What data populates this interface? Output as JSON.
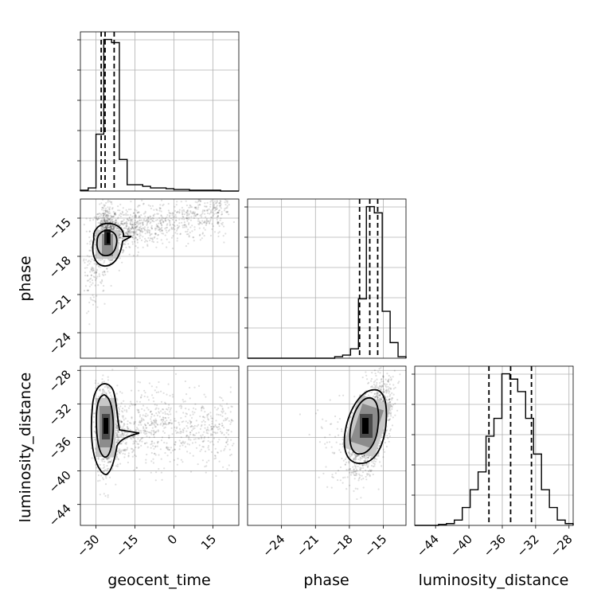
{
  "chart_data": [
    {
      "type": "histogram",
      "panel": "geocent_time",
      "x_range": [
        -36,
        25
      ],
      "bin_edges": [
        -36,
        -33,
        -30,
        -27,
        -24,
        -21,
        -18,
        -15,
        -12,
        -9,
        -6,
        -3,
        0,
        3,
        6,
        9,
        12,
        15,
        18,
        21,
        24
      ],
      "counts": [
        0.5,
        2,
        36,
        96,
        94,
        20,
        4,
        4,
        3,
        2,
        2,
        1.5,
        1,
        1,
        0.5,
        0.5,
        0.5,
        0.5,
        0,
        0
      ],
      "quantiles": [
        -28,
        -26.5,
        -23
      ],
      "grid": true
    },
    {
      "type": "histogram",
      "panel": "phase",
      "x_range": [
        -27,
        -13
      ],
      "bin_edges": [
        -27,
        -26.3,
        -25.6,
        -24.9,
        -24.2,
        -23.5,
        -22.8,
        -22.1,
        -21.4,
        -20.7,
        -20,
        -19.3,
        -18.6,
        -17.9,
        -17.2,
        -16.5,
        -15.8,
        -15.1,
        -14.4,
        -13.7,
        -13
      ],
      "counts": [
        0,
        0,
        0,
        0,
        0,
        0,
        0,
        0,
        0,
        0,
        0,
        1,
        2,
        6,
        38,
        97,
        93,
        30,
        10,
        1
      ],
      "quantiles": [
        -17.1,
        -16.2,
        -15.5
      ],
      "grid": true
    },
    {
      "type": "histogram",
      "panel": "luminosity_distance",
      "x_range": [
        -46.5,
        -27.5
      ],
      "bin_edges": [
        -46.5,
        -45.55,
        -44.6,
        -43.65,
        -42.7,
        -41.75,
        -40.8,
        -39.85,
        -38.9,
        -37.95,
        -37,
        -36.05,
        -35.1,
        -34.15,
        -33.2,
        -32.25,
        -31.3,
        -30.35,
        -29.4,
        -28.45,
        -27.5
      ],
      "counts": [
        0,
        0,
        0,
        0.5,
        1,
        3,
        10,
        20,
        30,
        50,
        60,
        85,
        82,
        75,
        60,
        40,
        20,
        10,
        3,
        1
      ],
      "quantiles": [
        -37.6,
        -35.0,
        -32.5
      ],
      "grid": true
    },
    {
      "type": "scatter",
      "panel": "phase vs geocent_time",
      "x_range": [
        -36,
        25
      ],
      "y_range": [
        -26,
        -13.5
      ],
      "density": "bimodal: core near (-26, -16.3); diagonal band rising toward (15, -14.5)",
      "contour_levels": 2,
      "grid": true
    },
    {
      "type": "scatter",
      "panel": "luminosity_distance vs geocent_time",
      "x_range": [
        -36,
        25
      ],
      "y_range": [
        -46.5,
        -27.5
      ],
      "density": "core near (-26.5, -35); broad horizontal spread to the right",
      "contour_levels": 2,
      "grid": true
    },
    {
      "type": "scatter",
      "panel": "luminosity_distance vs phase",
      "x_range": [
        -27,
        -13
      ],
      "y_range": [
        -46.5,
        -27.5
      ],
      "density": "single elliptical cluster near (-16.2, -34.8)",
      "contour_levels": 2,
      "grid": true
    }
  ],
  "axes": {
    "geocent_time": {
      "label": "geocent_time",
      "ticks": [
        "−30",
        "−15",
        "0",
        "15"
      ]
    },
    "phase": {
      "label": "phase",
      "ticks": [
        "−24",
        "−21",
        "−18",
        "−15"
      ]
    },
    "luminosity_distance": {
      "label": "luminosity_distance",
      "ticks": [
        "−44",
        "−40",
        "−36",
        "−32",
        "−28"
      ]
    }
  }
}
